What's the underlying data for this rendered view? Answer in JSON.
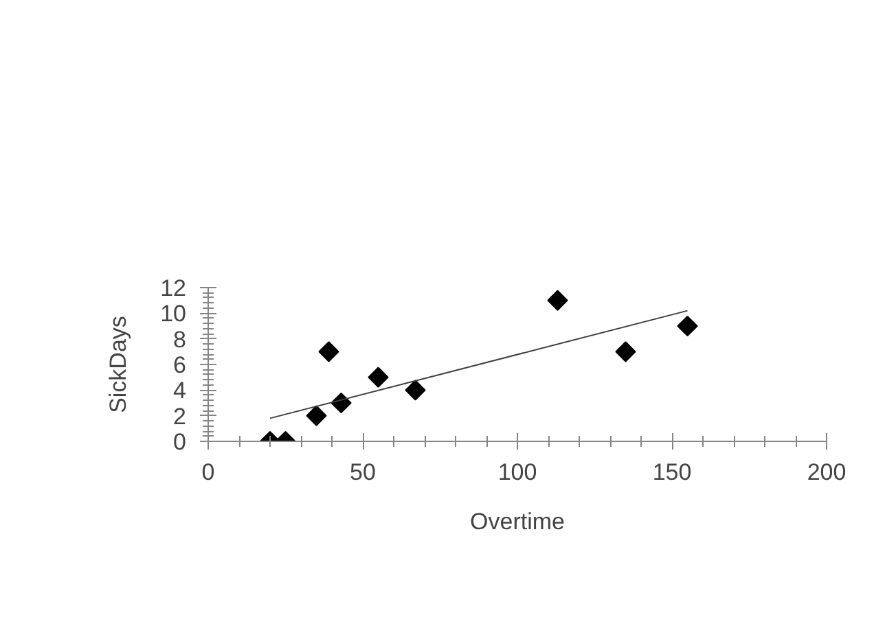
{
  "chart_data": {
    "type": "scatter",
    "xlabel": "Overtime",
    "ylabel": "SickDays",
    "xlim": [
      0,
      200
    ],
    "ylim": [
      0,
      12
    ],
    "xticks": [
      0,
      50,
      100,
      150,
      200
    ],
    "yticks": [
      0,
      2,
      4,
      6,
      8,
      10,
      12
    ],
    "grid": false,
    "marker": "diamond",
    "series": [
      {
        "color": "#000000",
        "x": [
          20,
          25,
          35,
          39,
          43,
          55,
          67,
          113,
          135,
          155
        ],
        "values": [
          0,
          0,
          2,
          7,
          3,
          5,
          4,
          11,
          7,
          9
        ]
      },
      {
        "type": "line",
        "marker": "none",
        "color": "#404040",
        "x": [
          20,
          155
        ],
        "values": [
          1.8,
          10.2
        ]
      }
    ]
  }
}
